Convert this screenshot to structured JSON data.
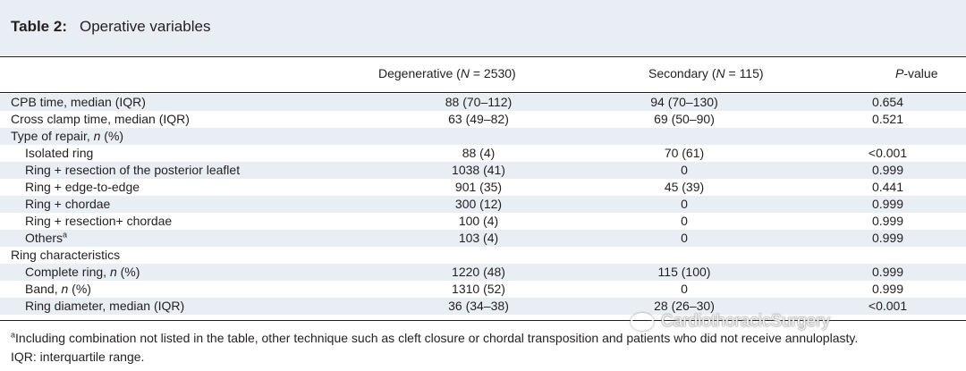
{
  "table": {
    "label": "Table 2:",
    "caption": "Operative variables",
    "headers": [
      "",
      "Degenerative (N = 2530)",
      "Secondary (N = 115)",
      "P-value"
    ],
    "rows": [
      {
        "label": "CPB time, median (IQR)",
        "degenerative": "88 (70–112)",
        "secondary": "94 (70–130)",
        "p": "0.654",
        "indent": false
      },
      {
        "label": "Cross clamp time, median (IQR)",
        "degenerative": "63 (49–82)",
        "secondary": "69 (50–90)",
        "p": "0.521",
        "indent": false
      },
      {
        "label": "Type of repair, n (%)",
        "degenerative": "",
        "secondary": "",
        "p": "",
        "indent": false
      },
      {
        "label": "Isolated ring",
        "degenerative": "88 (4)",
        "secondary": "70 (61)",
        "p": "<0.001",
        "indent": true
      },
      {
        "label": "Ring + resection of the posterior leaflet",
        "degenerative": "1038 (41)",
        "secondary": "0",
        "p": "0.999",
        "indent": true
      },
      {
        "label": "Ring + edge-to-edge",
        "degenerative": "901 (35)",
        "secondary": "45 (39)",
        "p": "0.441",
        "indent": true
      },
      {
        "label": "Ring + chordae",
        "degenerative": "300 (12)",
        "secondary": "0",
        "p": "0.999",
        "indent": true
      },
      {
        "label": "Ring + resection+ chordae",
        "degenerative": "100 (4)",
        "secondary": "0",
        "p": "0.999",
        "indent": true
      },
      {
        "label": "Others",
        "sup": "a",
        "degenerative": "103 (4)",
        "secondary": "0",
        "p": "0.999",
        "indent": true
      },
      {
        "label": "Ring characteristics",
        "degenerative": "",
        "secondary": "",
        "p": "",
        "indent": false
      },
      {
        "label": "Complete ring, n (%)",
        "degenerative": "1220 (48)",
        "secondary": "115 (100)",
        "p": "0.999",
        "indent": true
      },
      {
        "label": "Band, n (%)",
        "degenerative": "1310 (52)",
        "secondary": "0",
        "p": "0.999",
        "indent": true
      },
      {
        "label": "Ring diameter, median (IQR)",
        "degenerative": "36 (34–38)",
        "secondary": "28 (26–30)",
        "p": "<0.001",
        "indent": true
      }
    ]
  },
  "footnotes": {
    "a_marker": "a",
    "a_text": "Including combination not listed in the table, other technique such as cleft closure or chordal transposition and patients who did not receive annuloplasty.",
    "iqr": "IQR: interquartile range."
  },
  "watermark": {
    "text": "CardiothoracicSurgery"
  }
}
